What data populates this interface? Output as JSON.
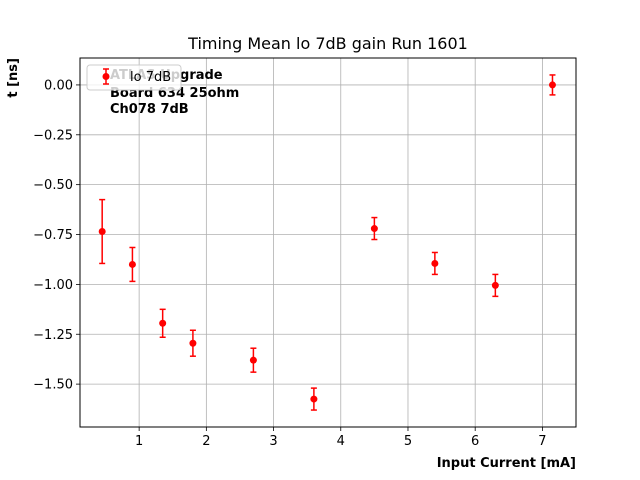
{
  "chart_data": {
    "type": "scatter",
    "title": "Timing Mean lo 7dB gain Run 1601",
    "xlabel": "Input Current [mA]",
    "ylabel": "t [ns]",
    "xlim": [
      0.12,
      7.5
    ],
    "ylim": [
      -1.715,
      0.135
    ],
    "xticks": [
      1,
      2,
      3,
      4,
      5,
      6,
      7
    ],
    "yticks": [
      -1.5,
      -1.25,
      -1.0,
      -0.75,
      -0.5,
      -0.25,
      0.0
    ],
    "grid": true,
    "legend_position": "top-left",
    "series": [
      {
        "name": "lo 7dB",
        "color": "#ff0000",
        "marker": "circle",
        "x": [
          0.45,
          0.9,
          1.35,
          1.8,
          2.7,
          3.6,
          4.5,
          5.4,
          6.3,
          7.15
        ],
        "y": [
          -0.735,
          -0.9,
          -1.195,
          -1.295,
          -1.38,
          -1.575,
          -0.72,
          -0.895,
          -1.005,
          0.0
        ],
        "yerr": [
          0.16,
          0.085,
          0.07,
          0.065,
          0.06,
          0.055,
          0.055,
          0.055,
          0.055,
          0.05
        ]
      }
    ],
    "annotations": [
      "ATLAS Upgrade",
      "Board 634 25ohm",
      "Ch078 7dB"
    ]
  }
}
